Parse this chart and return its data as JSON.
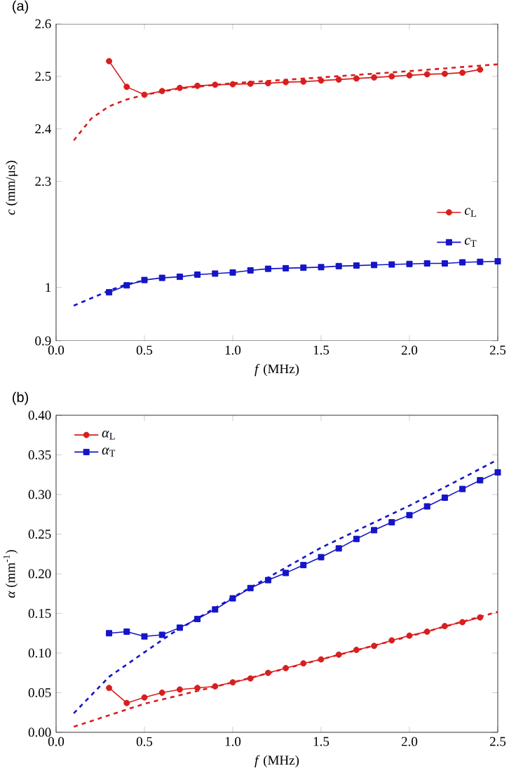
{
  "chart_data": [
    {
      "type": "line",
      "title": "(a)",
      "ylabel": "*c* (mm/μs)",
      "xlim": [
        0,
        2.5
      ],
      "ylim": [
        2.21,
        2.6
      ],
      "xticks": [
        0,
        0.5,
        1,
        1.5,
        2,
        2.5
      ],
      "yticks": [
        2.3,
        2.4,
        2.5,
        2.6
      ],
      "tick_labels": "y",
      "legend": "bottom right",
      "grid": false,
      "series": [
        {
          "name": "*c*$_{L}$",
          "color": "#d81e1e",
          "marker": "circle",
          "line_style": "solid",
          "x": [
            0.3,
            0.4,
            0.5,
            0.6,
            0.7,
            0.8,
            0.9,
            1.0,
            1.1,
            1.2,
            1.3,
            1.4,
            1.5,
            1.6,
            1.7,
            1.8,
            1.9,
            2.0,
            2.1,
            2.2,
            2.3,
            2.4
          ],
          "values": [
            2.529,
            2.48,
            2.465,
            2.472,
            2.478,
            2.482,
            2.484,
            2.485,
            2.486,
            2.487,
            2.489,
            2.49,
            2.492,
            2.494,
            2.496,
            2.498,
            2.5,
            2.502,
            2.504,
            2.505,
            2.507,
            2.513
          ]
        },
        {
          "color": "#d81e1e",
          "marker": "none",
          "line_style": "dashed",
          "x": [
            0.1,
            0.2,
            0.3,
            0.4,
            0.5,
            0.7,
            1.0,
            1.5,
            2.0,
            2.5
          ],
          "values": [
            2.378,
            2.42,
            2.443,
            2.456,
            2.465,
            2.477,
            2.487,
            2.498,
            2.51,
            2.523
          ]
        }
      ]
    },
    {
      "type": "line",
      "xlabel": "*f* (MHz)",
      "xlim": [
        0,
        2.5
      ],
      "ylim": [
        0.9,
        1.11
      ],
      "xticks": [
        {
          "value": 0,
          "label": "0.0"
        },
        0.5,
        {
          "value": 1,
          "label": "1.0"
        },
        1.5,
        {
          "value": 2,
          "label": "2.0"
        },
        2.5
      ],
      "yticks": [
        0.9,
        1
      ],
      "legend": "top right",
      "grid": false,
      "series": [
        {
          "name": "*c*$_{T}$",
          "color": "#1414c8",
          "marker": "square",
          "line_style": "solid",
          "x": [
            0.3,
            0.4,
            0.5,
            0.6,
            0.7,
            0.8,
            0.9,
            1.0,
            1.1,
            1.2,
            1.3,
            1.4,
            1.5,
            1.6,
            1.7,
            1.8,
            1.9,
            2.0,
            2.1,
            2.2,
            2.3,
            2.4,
            2.5
          ],
          "values": [
            0.991,
            1.004,
            1.014,
            1.018,
            1.02,
            1.024,
            1.026,
            1.028,
            1.032,
            1.035,
            1.036,
            1.037,
            1.038,
            1.04,
            1.041,
            1.042,
            1.043,
            1.044,
            1.045,
            1.045,
            1.047,
            1.048,
            1.049
          ]
        },
        {
          "color": "#1414c8",
          "marker": "none",
          "line_style": "dashed",
          "x": [
            0.1,
            0.2,
            0.3,
            0.4,
            0.5
          ],
          "values": [
            0.966,
            0.98,
            0.994,
            1.006,
            1.013
          ]
        }
      ]
    },
    {
      "type": "line",
      "title": "(b)",
      "xlabel": "*f* (MHz)",
      "ylabel": "*α* (mm$^{-1}$)",
      "xlim": [
        0,
        2.5
      ],
      "ylim": [
        0,
        0.4
      ],
      "xticks": [
        {
          "value": 0,
          "label": "0.0"
        },
        0.5,
        {
          "value": 1,
          "label": "1.0"
        },
        1.5,
        {
          "value": 2,
          "label": "2.0"
        },
        2.5
      ],
      "yticks": [
        {
          "value": 0,
          "label": "0.00"
        },
        0.05,
        {
          "value": 0.1,
          "label": "0.10"
        },
        0.15,
        {
          "value": 0.2,
          "label": "0.20"
        },
        0.25,
        {
          "value": 0.3,
          "label": "0.30"
        },
        0.35,
        {
          "value": 0.4,
          "label": "0.40"
        }
      ],
      "legend": "top left",
      "grid": false,
      "series": [
        {
          "name": "*α*$_{L}$",
          "color": "#d81e1e",
          "marker": "circle",
          "line_style": "solid",
          "x": [
            0.3,
            0.4,
            0.5,
            0.6,
            0.7,
            0.8,
            0.9,
            1.0,
            1.1,
            1.2,
            1.3,
            1.4,
            1.5,
            1.6,
            1.7,
            1.8,
            1.9,
            2.0,
            2.1,
            2.2,
            2.3,
            2.4
          ],
          "values": [
            0.056,
            0.037,
            0.044,
            0.05,
            0.054,
            0.056,
            0.058,
            0.063,
            0.068,
            0.075,
            0.081,
            0.087,
            0.092,
            0.098,
            0.104,
            0.109,
            0.116,
            0.122,
            0.127,
            0.134,
            0.139,
            0.145
          ]
        },
        {
          "name": "*α*$_{T}$",
          "color": "#1414c8",
          "marker": "square",
          "line_style": "solid",
          "x": [
            0.3,
            0.4,
            0.5,
            0.6,
            0.7,
            0.8,
            0.9,
            1.0,
            1.1,
            1.2,
            1.3,
            1.4,
            1.5,
            1.6,
            1.7,
            1.8,
            1.9,
            2.0,
            2.1,
            2.2,
            2.3,
            2.4,
            2.5
          ],
          "values": [
            0.125,
            0.127,
            0.121,
            0.123,
            0.132,
            0.143,
            0.155,
            0.169,
            0.182,
            0.192,
            0.201,
            0.211,
            0.221,
            0.232,
            0.244,
            0.255,
            0.265,
            0.274,
            0.285,
            0.296,
            0.307,
            0.318,
            0.328
          ]
        },
        {
          "color": "#d81e1e",
          "marker": "none",
          "line_style": "dashed",
          "x": [
            0.1,
            0.5,
            1.0,
            1.5,
            2.0,
            2.5
          ],
          "values": [
            0.007,
            0.036,
            0.063,
            0.092,
            0.121,
            0.152
          ]
        },
        {
          "color": "#1414c8",
          "marker": "none",
          "line_style": "dashed",
          "x": [
            0.1,
            0.3,
            0.5,
            0.65,
            1.0,
            1.5,
            2.0,
            2.5
          ],
          "values": [
            0.024,
            0.07,
            0.101,
            0.124,
            0.17,
            0.233,
            0.286,
            0.344
          ]
        }
      ]
    }
  ]
}
